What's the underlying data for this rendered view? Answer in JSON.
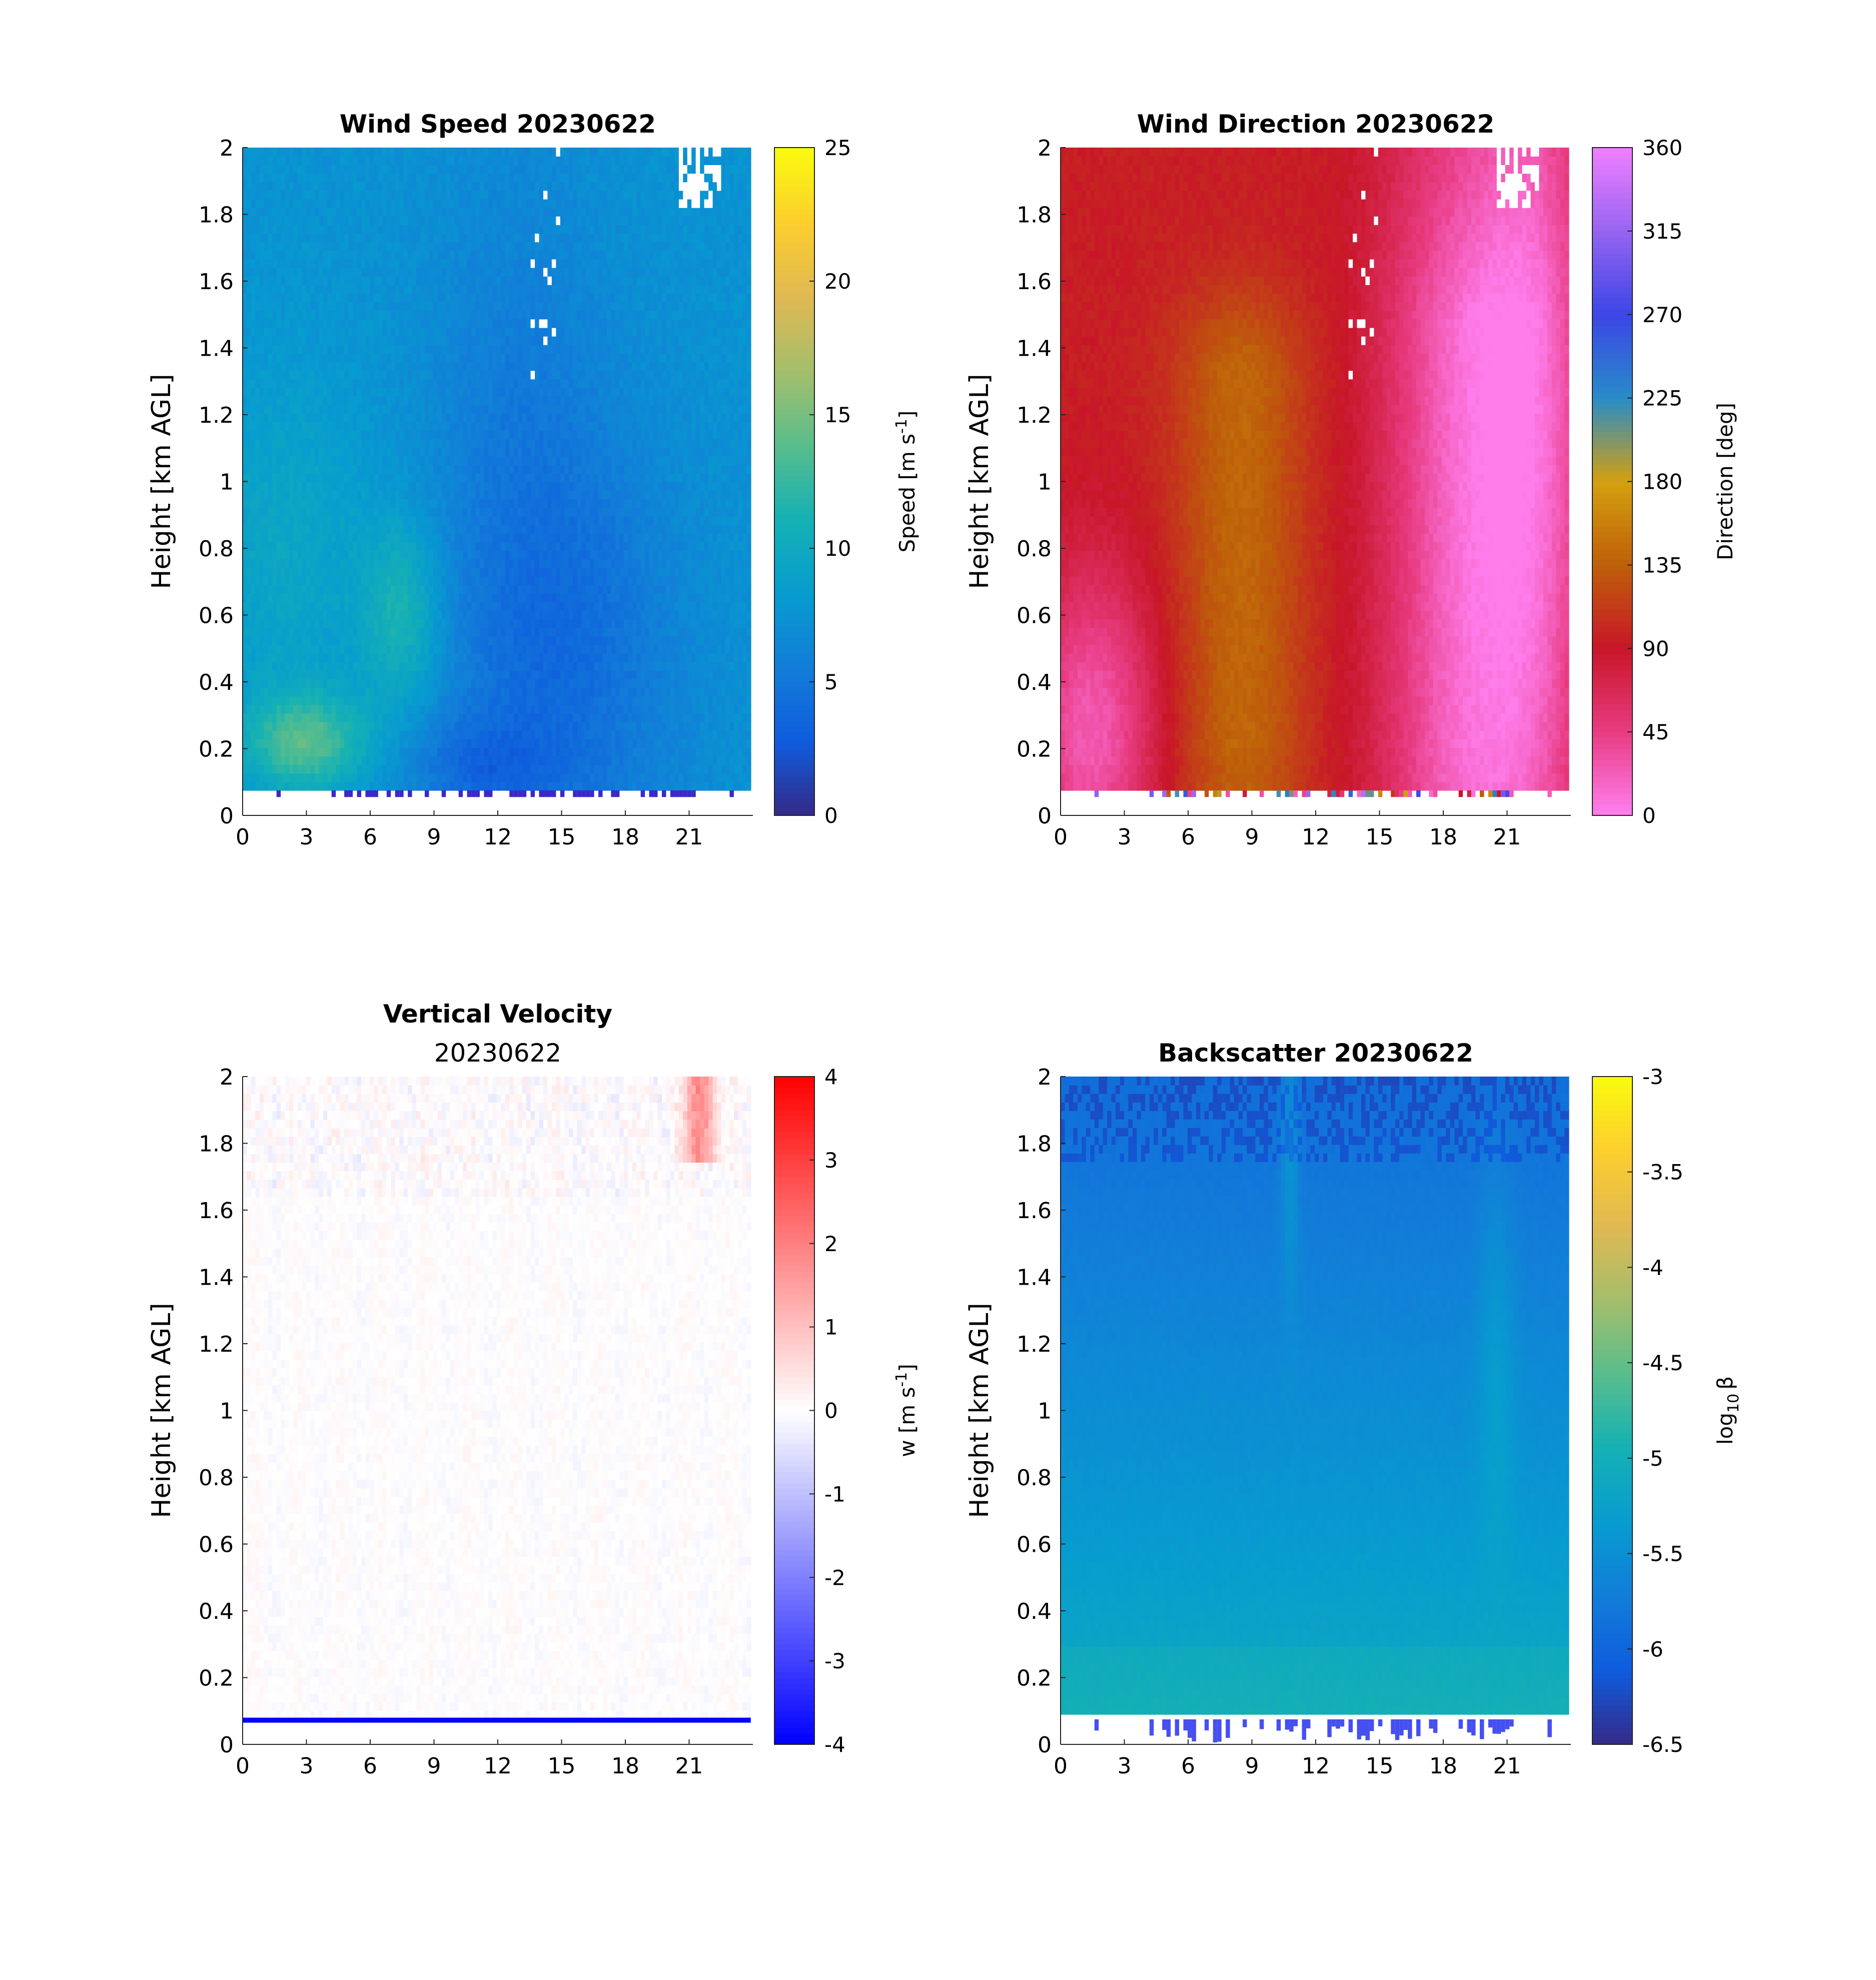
{
  "chart_data": [
    {
      "id": "speed",
      "type": "heatmap",
      "title": "Wind Speed 20230622",
      "subtitle": "",
      "xlabel": "",
      "ylabel": "Height [km AGL]",
      "xlim": [
        0,
        24
      ],
      "ylim": [
        0,
        2
      ],
      "xticks": [
        0,
        3,
        6,
        9,
        12,
        15,
        18,
        21
      ],
      "xtick_labels": [
        "0",
        "3",
        "6",
        "9",
        "12",
        "15",
        "18",
        "21"
      ],
      "yticks": [
        0,
        0.2,
        0.4,
        0.6,
        0.8,
        1,
        1.2,
        1.4,
        1.6,
        1.8,
        2
      ],
      "ytick_labels": [
        "0",
        "0.2",
        "0.4",
        "0.6",
        "0.8",
        "1",
        "1.2",
        "1.4",
        "1.6",
        "1.8",
        "2"
      ],
      "colorbar": {
        "label": "Speed [m s",
        "label_sup": "-1",
        "label_end": "]",
        "range": [
          0,
          25
        ],
        "ticks": [
          0,
          5,
          10,
          15,
          20,
          25
        ],
        "tick_labels": [
          "0",
          "5",
          "10",
          "15",
          "20",
          "25"
        ],
        "colormap": "parula"
      }
    },
    {
      "id": "direction",
      "type": "heatmap",
      "title": "Wind Direction 20230622",
      "subtitle": "",
      "xlabel": "",
      "ylabel": "Height [km AGL]",
      "xlim": [
        0,
        24
      ],
      "ylim": [
        0,
        2
      ],
      "xticks": [
        0,
        3,
        6,
        9,
        12,
        15,
        18,
        21
      ],
      "xtick_labels": [
        "0",
        "3",
        "6",
        "9",
        "12",
        "15",
        "18",
        "21"
      ],
      "yticks": [
        0,
        0.2,
        0.4,
        0.6,
        0.8,
        1,
        1.2,
        1.4,
        1.6,
        1.8,
        2
      ],
      "ytick_labels": [
        "0",
        "0.2",
        "0.4",
        "0.6",
        "0.8",
        "1",
        "1.2",
        "1.4",
        "1.6",
        "1.8",
        "2"
      ],
      "colorbar": {
        "label": "Direction [deg]",
        "label_sup": "",
        "label_end": "",
        "range": [
          0,
          360
        ],
        "ticks": [
          0,
          45,
          90,
          135,
          180,
          225,
          270,
          315,
          360
        ],
        "tick_labels": [
          "0",
          "45",
          "90",
          "135",
          "180",
          "225",
          "270",
          "315",
          "360"
        ],
        "colormap": "cyclic-direction"
      }
    },
    {
      "id": "vertical",
      "type": "heatmap",
      "title": "Vertical Velocity",
      "subtitle": "20230622",
      "xlabel": "",
      "ylabel": "Height [km AGL]",
      "xlim": [
        0,
        24
      ],
      "ylim": [
        0,
        2
      ],
      "xticks": [
        0,
        3,
        6,
        9,
        12,
        15,
        18,
        21
      ],
      "xtick_labels": [
        "0",
        "3",
        "6",
        "9",
        "12",
        "15",
        "18",
        "21"
      ],
      "yticks": [
        0,
        0.2,
        0.4,
        0.6,
        0.8,
        1,
        1.2,
        1.4,
        1.6,
        1.8,
        2
      ],
      "ytick_labels": [
        "0",
        "0.2",
        "0.4",
        "0.6",
        "0.8",
        "1",
        "1.2",
        "1.4",
        "1.6",
        "1.8",
        "2"
      ],
      "colorbar": {
        "label": "w [m s",
        "label_sup": "-1",
        "label_end": "]",
        "range": [
          -4,
          4
        ],
        "ticks": [
          -4,
          -3,
          -2,
          -1,
          0,
          1,
          2,
          3,
          4
        ],
        "tick_labels": [
          "-4",
          "-3",
          "-2",
          "-1",
          "0",
          "1",
          "2",
          "3",
          "4"
        ],
        "colormap": "blue-white-red"
      }
    },
    {
      "id": "backscatter",
      "type": "heatmap",
      "title": "Backscatter 20230622",
      "subtitle": "",
      "xlabel": "",
      "ylabel": "Height [km AGL]",
      "xlim": [
        0,
        24
      ],
      "ylim": [
        0,
        2
      ],
      "xticks": [
        0,
        3,
        6,
        9,
        12,
        15,
        18,
        21
      ],
      "xtick_labels": [
        "0",
        "3",
        "6",
        "9",
        "12",
        "15",
        "18",
        "21"
      ],
      "yticks": [
        0,
        0.2,
        0.4,
        0.6,
        0.8,
        1,
        1.2,
        1.4,
        1.6,
        1.8,
        2
      ],
      "ytick_labels": [
        "0",
        "0.2",
        "0.4",
        "0.6",
        "0.8",
        "1",
        "1.2",
        "1.4",
        "1.6",
        "1.8",
        "2"
      ],
      "colorbar": {
        "label": "log",
        "label_sub": "10",
        "label_beta": "β",
        "range": [
          -6.5,
          -3
        ],
        "ticks": [
          -6.5,
          -6,
          -5.5,
          -5,
          -4.5,
          -4,
          -3.5,
          -3
        ],
        "tick_labels": [
          "-6.5",
          "-6",
          "-5.5",
          "-5",
          "-4.5",
          "-4",
          "-3.5",
          "-3"
        ],
        "colormap": "parula"
      }
    }
  ]
}
